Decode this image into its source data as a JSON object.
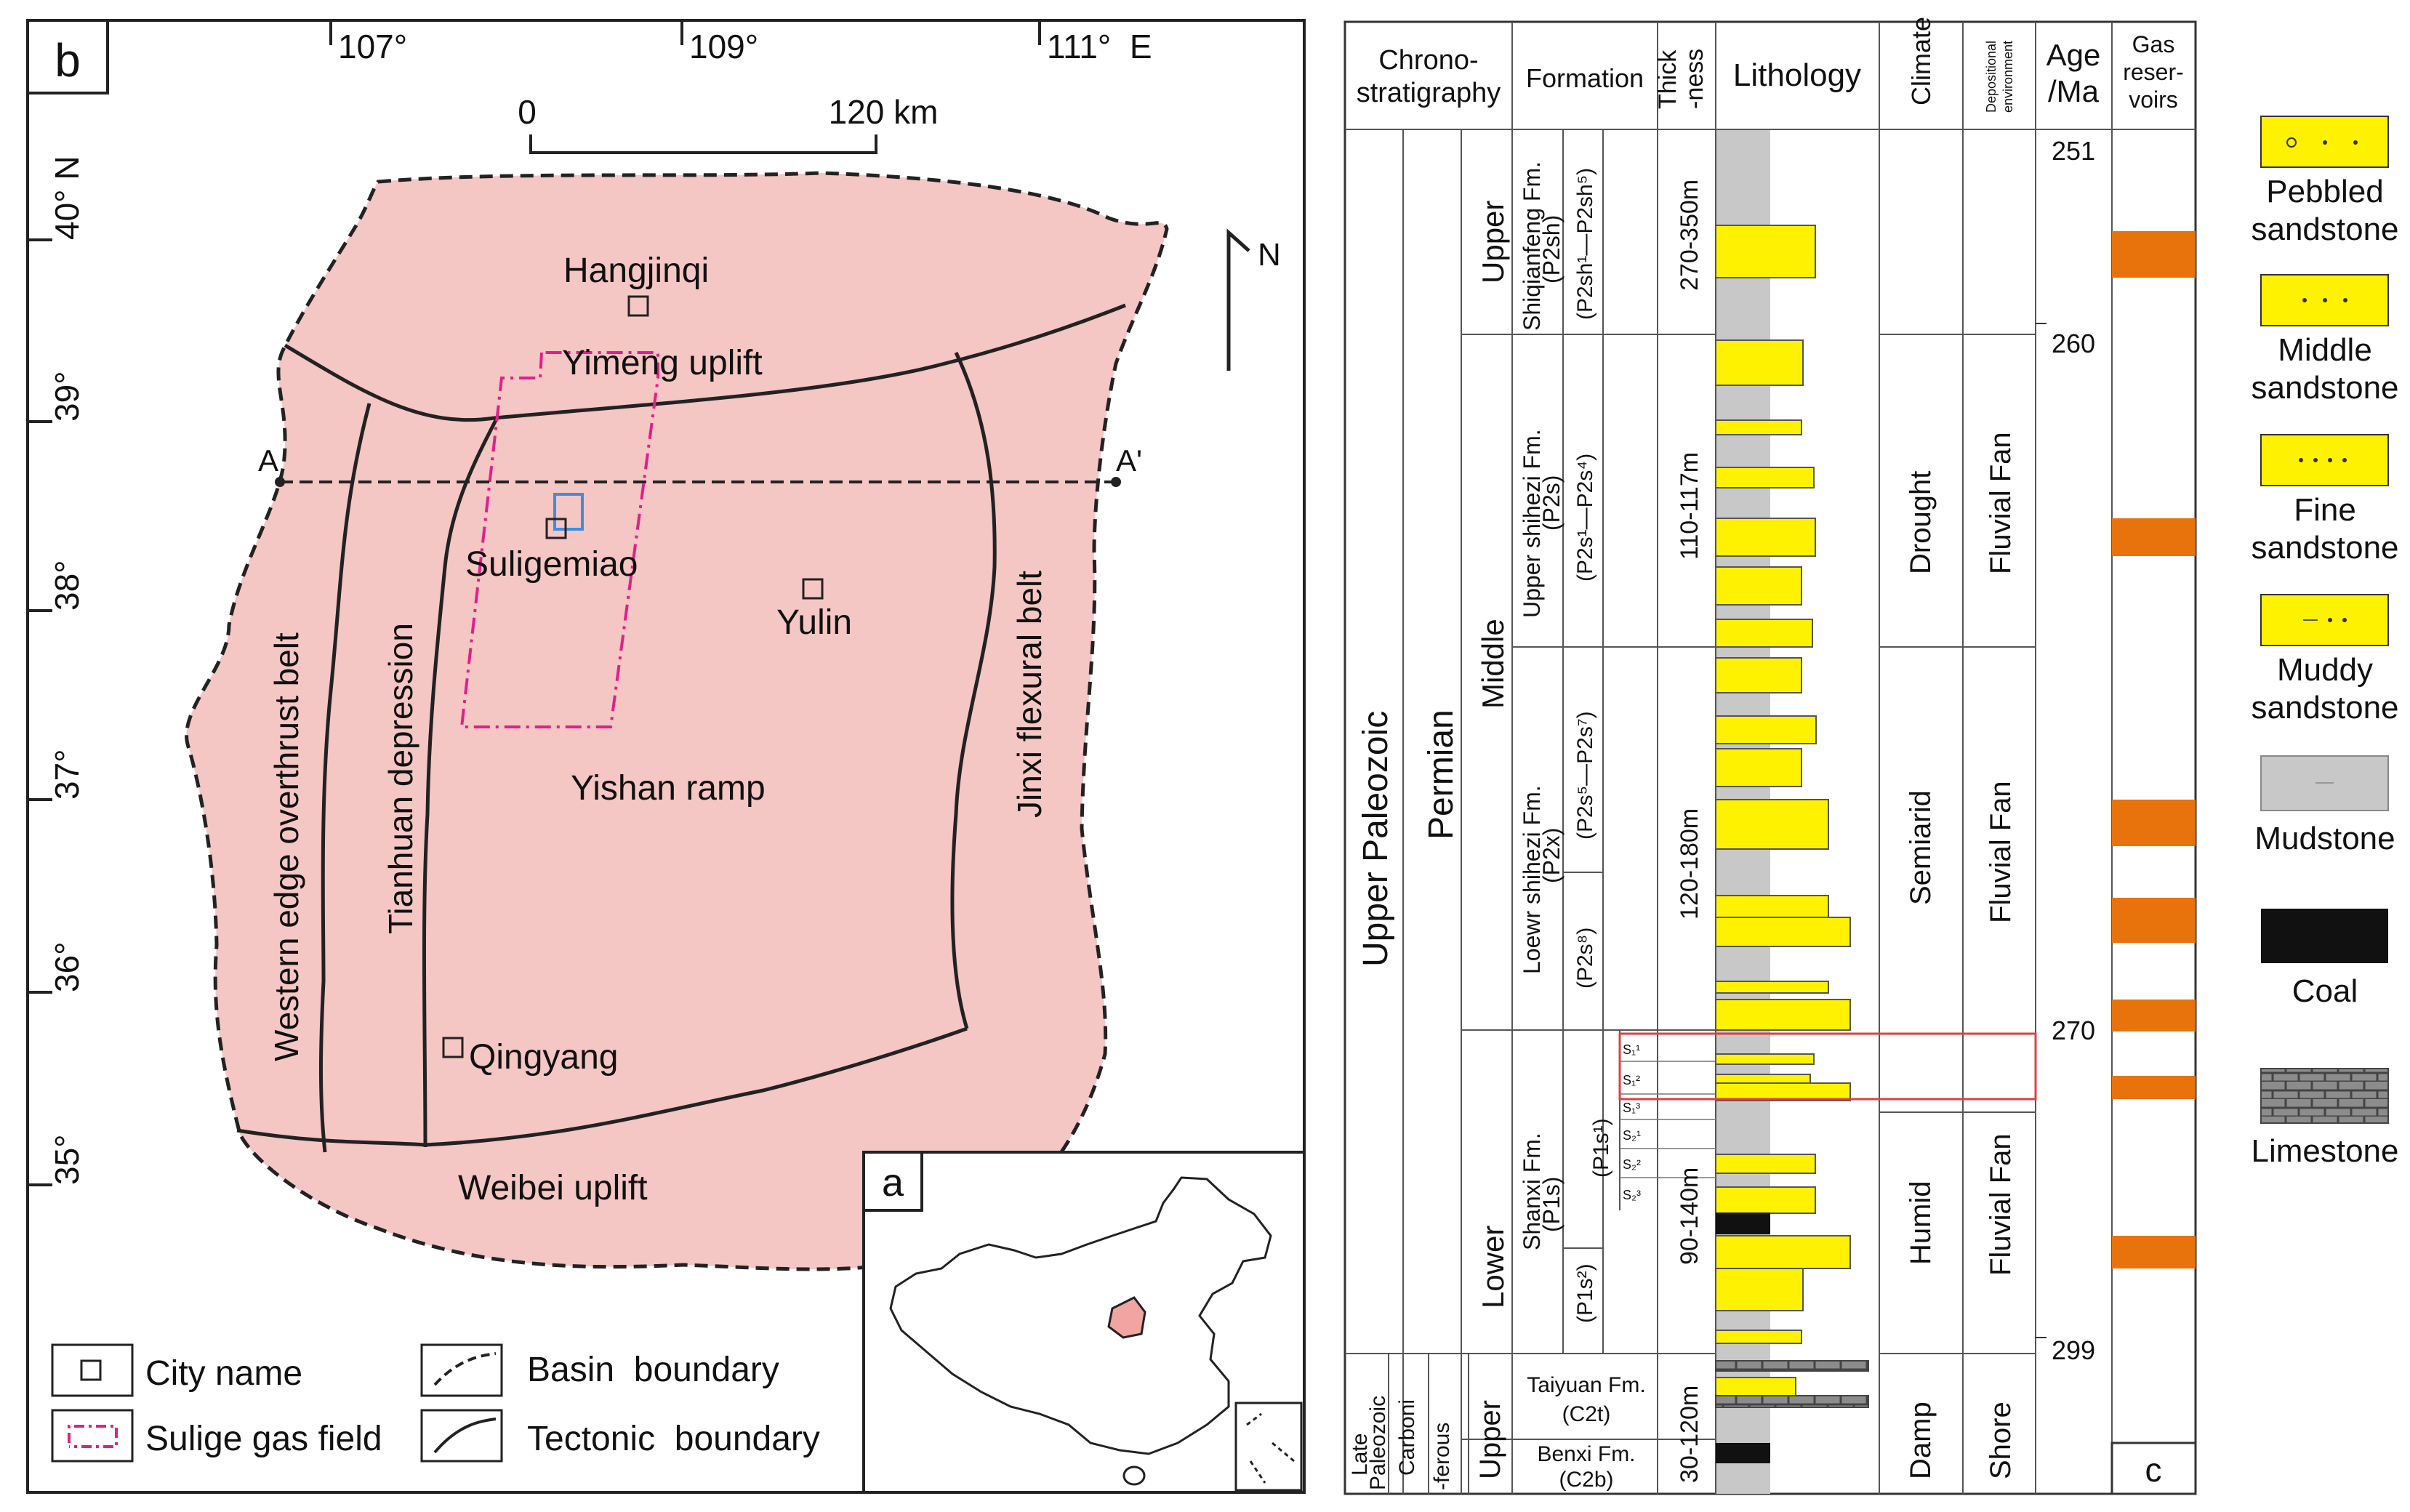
{
  "map": {
    "panel_letter": "b",
    "inset_letter": "a",
    "longitudes": [
      "107°",
      "109°",
      "111°  E"
    ],
    "latitudes": [
      "40° N",
      "39°",
      "38°",
      "37°",
      "36°",
      "35°"
    ],
    "scale": {
      "zero": "0",
      "end": "120 km"
    },
    "north": "N",
    "cities": [
      "Hangjinqi",
      "Suligemiao",
      "Yulin",
      "Qingyang"
    ],
    "units": {
      "yimeng": "Yimeng uplift",
      "weibei": "Weibei uplift",
      "yishan": "Yishan ramp",
      "western": "Western edge overthrust belt",
      "tianhuan": "Tianhuan depression",
      "jinxi": "Jinxi flexural belt"
    },
    "section": {
      "a": "A",
      "a_prime": "A'"
    },
    "legend": {
      "city": "City name",
      "basin": "Basin  boundary",
      "sulige": "Sulige gas field",
      "tectonic": "Tectonic  boundary"
    },
    "colors": {
      "basin_fill": "#F4C6C4",
      "sulige": "#E0208A",
      "well_box": "#3C8EE0"
    }
  },
  "column": {
    "panel_letter": "c",
    "headers": {
      "chrono1": "Chrono-",
      "chrono2": "stratigraphy",
      "formation": "Formation",
      "thick1": "Thick",
      "thick2": "-ness",
      "lithology": "Lithology",
      "climate": "Climate",
      "dep1": "Depositional",
      "dep2": "environment",
      "age1": "Age",
      "age2": "/Ma",
      "gas1": "Gas",
      "gas2": "reser-",
      "gas3": "voirs"
    },
    "erathem": {
      "upper_paleozoic": "Upper Paleozoic",
      "late": "Late",
      "paleozoic": "Paleozoic"
    },
    "system": {
      "permian": "Permian",
      "carboni": "Carboni",
      "ferous": "-ferous"
    },
    "series": {
      "upper": "Upper",
      "middle": "Middle",
      "lower": "Lower",
      "upper_carb": "Upper"
    },
    "formations": {
      "shiqianfeng1": "Shiqianfeng Fm.",
      "shiqianfeng2": "(P2sh)",
      "upper_shihezi1": "Upper shihezi Fm.",
      "upper_shihezi2": "(P2s)",
      "lower_shihezi1": "Loewr shihezi Fm.",
      "lower_shihezi2": "(P2x)",
      "shanxi1": "Shanxi Fm.",
      "shanxi2": "(P1s)",
      "taiyuan1": "Taiyuan Fm.",
      "taiyuan2": "(C2t)",
      "benxi1": "Benxi Fm.",
      "benxi2": "(C2b)"
    },
    "members": {
      "p2sh": "(P2sh¹—P2sh⁵)",
      "p2s_upper": "(P2s¹—P2s⁴)",
      "p2s_lower": "(P2s⁵—P2s⁷)",
      "p2s8": "(P2s⁸)",
      "p1s1": "(P1s¹)",
      "p1s2": "(P1s²)"
    },
    "sublayers": [
      "S₁¹",
      "S₁²",
      "S₁³",
      "S₂¹",
      "S₂²",
      "S₂³"
    ],
    "thickness": [
      "270-350m",
      "110-117m",
      "120-180m",
      "90-140m",
      "30-120m"
    ],
    "climate": [
      "Drought",
      "Semiarid",
      "Humid",
      "Damp"
    ],
    "environment": [
      "Fluvial Fan",
      "Fluvial Fan",
      "Fluvial Fan",
      "Shore"
    ],
    "ages": [
      "251",
      "260",
      "270",
      "299"
    ],
    "colors": {
      "sandstone": "#FFF200",
      "mudstone": "#C8C8C8",
      "coal": "#111111",
      "limestone": "#8C8C8C",
      "gas": "#E8720C"
    }
  },
  "legend": {
    "pebbled1": "Pebbled",
    "pebbled2": "sandstone",
    "middle1": "Middle",
    "middle2": "sandstone",
    "fine1": "Fine",
    "fine2": "sandstone",
    "muddy1": "Muddy",
    "muddy2": "sandstone",
    "mudstone": "Mudstone",
    "coal": "Coal",
    "limestone": "Limestone"
  }
}
